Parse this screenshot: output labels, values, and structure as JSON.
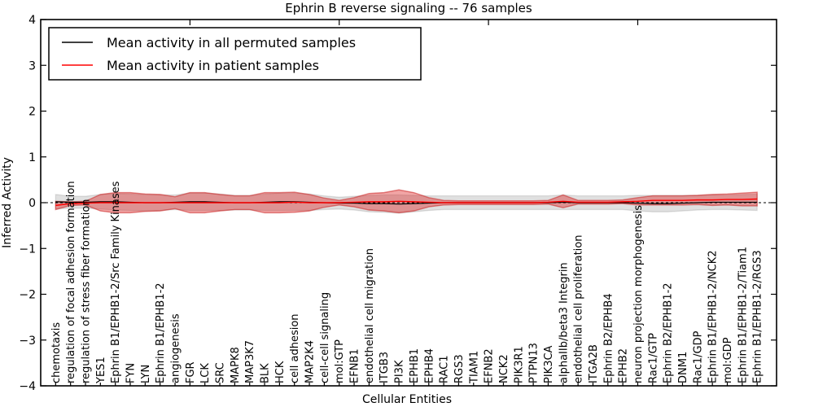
{
  "title": "Ephrin B reverse signaling -- 76 samples",
  "axes": {
    "ylabel": "Inferred Activity",
    "xlabel": "Cellular Entities",
    "ytick_labels": [
      "4",
      "3",
      "2",
      "1",
      "0",
      "−1",
      "−2",
      "−3",
      "−4"
    ],
    "ytick_values": [
      4,
      3,
      2,
      1,
      0,
      -1,
      -2,
      -3,
      -4
    ],
    "ylim": [
      -4,
      4
    ]
  },
  "legend": {
    "entries": [
      {
        "label": "Mean activity in all permuted samples",
        "color": "#000000"
      },
      {
        "label": "Mean activity in patient samples",
        "color": "#ff0000"
      }
    ]
  },
  "chart_data": {
    "type": "line",
    "title": "Ephrin B reverse signaling -- 76 samples",
    "xlabel": "Cellular Entities",
    "ylabel": "Inferred Activity",
    "ylim": [
      -4,
      4
    ],
    "grid": false,
    "legend_position": "upper left",
    "zero_line": "black dashed",
    "top_axis_tick_values": [
      10,
      20,
      30,
      40
    ],
    "categories": [
      "chemotaxis",
      "regulation of focal adhesion formation",
      "regulation of stress fiber formation",
      "YES1",
      "Ephrin B1/EPHB1-2/Src Family Kinases",
      "FYN",
      "LYN",
      "Ephrin B1/EPHB1-2",
      "angiogenesis",
      "FGR",
      "LCK",
      "SRC",
      "MAPK8",
      "MAP3K7",
      "BLK",
      "HCK",
      "cell adhesion",
      "MAP2K4",
      "cell-cell signaling",
      "mol:GTP",
      "EFNB1",
      "endothelial cell migration",
      "ITGB3",
      "PI3K",
      "EPHB1",
      "EPHB4",
      "RAC1",
      "RGS3",
      "TIAM1",
      "EFNB2",
      "NCK2",
      "PIK3R1",
      "PTPN13",
      "PIK3CA",
      "alphaIIb/beta3 Integrin",
      "endothelial cell proliferation",
      "ITGA2B",
      "Ephrin B2/EPHB4",
      "EPHB2",
      "neuron projection morphogenesis",
      "Rac1/GTP",
      "Ephrin B2/EPHB1-2",
      "DNM1",
      "Rac1/GDP",
      "Ephrin B1/EPHB1-2/NCK2",
      "mol:GDP",
      "Ephrin B1/EPHB1-2/Tiam1",
      "Ephrin B1/EPHB1-2/RGS3"
    ],
    "series": [
      {
        "name": "Mean activity in all permuted samples",
        "role": "permuted_mean",
        "color": "#000000",
        "values": [
          0.02,
          0.01,
          0.01,
          0.02,
          0.02,
          0.01,
          0.0,
          0.0,
          0.01,
          0.02,
          0.02,
          0.01,
          0.0,
          0.0,
          0.01,
          0.02,
          0.02,
          0.01,
          0.0,
          -0.01,
          -0.01,
          -0.02,
          -0.02,
          -0.03,
          -0.02,
          -0.01,
          0.0,
          0.0,
          0.0,
          0.0,
          0.0,
          0.0,
          0.0,
          0.0,
          0.01,
          0.0,
          0.0,
          0.0,
          0.0,
          -0.01,
          -0.02,
          -0.02,
          -0.01,
          0.0,
          0.01,
          0.01,
          0.01,
          0.01
        ]
      },
      {
        "name": "Mean activity in patient samples",
        "role": "patient_mean",
        "color": "#ff0000",
        "values": [
          -0.06,
          -0.02,
          -0.01,
          0.0,
          0.0,
          0.0,
          0.0,
          0.0,
          0.0,
          0.0,
          0.0,
          0.0,
          0.0,
          0.0,
          0.0,
          0.0,
          0.01,
          0.0,
          0.0,
          0.0,
          0.01,
          0.02,
          0.02,
          0.03,
          0.02,
          0.01,
          0.0,
          0.0,
          0.0,
          0.0,
          0.0,
          0.0,
          0.0,
          0.01,
          0.03,
          0.01,
          0.01,
          0.01,
          0.02,
          0.03,
          0.05,
          0.05,
          0.05,
          0.06,
          0.06,
          0.07,
          0.07,
          0.08
        ]
      },
      {
        "name": "Permuted samples std band (half-width)",
        "role": "permuted_std",
        "color": "rgba(0,0,0,0.12)",
        "values": [
          0.16,
          0.13,
          0.13,
          0.16,
          0.18,
          0.18,
          0.18,
          0.17,
          0.16,
          0.19,
          0.19,
          0.18,
          0.16,
          0.16,
          0.18,
          0.19,
          0.19,
          0.18,
          0.15,
          0.13,
          0.15,
          0.18,
          0.19,
          0.2,
          0.18,
          0.16,
          0.15,
          0.15,
          0.15,
          0.15,
          0.15,
          0.15,
          0.15,
          0.15,
          0.16,
          0.15,
          0.15,
          0.15,
          0.15,
          0.17,
          0.18,
          0.18,
          0.17,
          0.16,
          0.16,
          0.16,
          0.17,
          0.18
        ]
      },
      {
        "name": "Patient samples std band (half-width)",
        "role": "patient_std",
        "color": "rgba(220,30,30,0.40)",
        "values": [
          0.09,
          0.04,
          0.04,
          0.18,
          0.22,
          0.22,
          0.19,
          0.18,
          0.13,
          0.22,
          0.22,
          0.18,
          0.15,
          0.15,
          0.22,
          0.22,
          0.22,
          0.18,
          0.1,
          0.05,
          0.1,
          0.18,
          0.2,
          0.25,
          0.2,
          0.1,
          0.05,
          0.04,
          0.04,
          0.04,
          0.04,
          0.04,
          0.04,
          0.04,
          0.14,
          0.04,
          0.04,
          0.04,
          0.04,
          0.08,
          0.1,
          0.1,
          0.1,
          0.1,
          0.12,
          0.12,
          0.14,
          0.15
        ]
      }
    ],
    "band_edge_colors": {
      "permuted": "rgba(0,0,0,0.10)",
      "patient": "rgba(200,20,20,0.50)"
    }
  }
}
